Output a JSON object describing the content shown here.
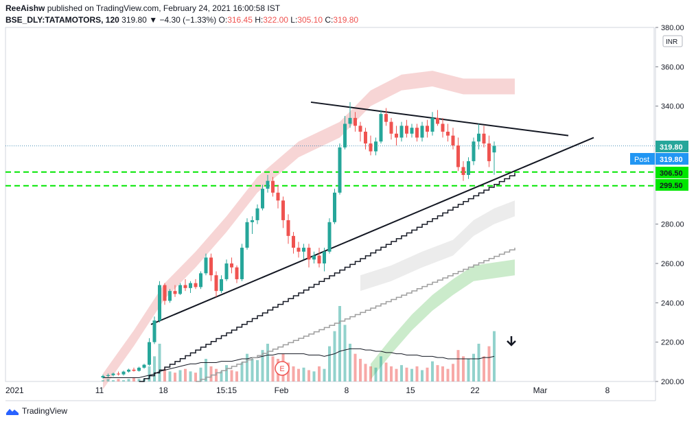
{
  "header": {
    "publisher": "ReeAishw",
    "published_text": "published on TradingView.com, February 24, 2021 16:00:58 IST",
    "symbol": "BSE_DLY:TATAMOTORS, 120",
    "last": "319.80",
    "change": "−4.30 (−1.33%)",
    "o_label": "O:",
    "o_value": "316.45",
    "h_label": "H:",
    "h_value": "322.00",
    "l_label": "L:",
    "l_value": "305.10",
    "c_label": "C:",
    "c_value": "319.80"
  },
  "footer": {
    "brand": "TradingView"
  },
  "colors": {
    "up": "#26a69a",
    "down": "#ef5350",
    "green_line": "#00e600",
    "post_badge": "#2196f3",
    "cloud_red": "#f4c7c7",
    "cloud_green": "#b9e4b9",
    "cloud_gray": "#e6e6e6"
  },
  "chart_data": {
    "type": "candlestick",
    "currency": "INR",
    "ylim": [
      200,
      380
    ],
    "y_ticks": [
      "380.00",
      "360.00",
      "340.00",
      "320.00",
      "300.00",
      "280.00",
      "260.00",
      "240.00",
      "220.00",
      "200.00"
    ],
    "x_labels": [
      "2021",
      "11",
      "18",
      "15:15",
      "Feb",
      "8",
      "15",
      "22",
      "Mar",
      "8"
    ],
    "price_labels": [
      {
        "text": "319.80",
        "value": 319.8
      },
      {
        "text": "319.80",
        "value": 319.8,
        "badge": "Post"
      },
      {
        "text": "306.50",
        "value": 306.5
      },
      {
        "text": "299.50",
        "value": 299.5
      }
    ],
    "horizontal_levels": [
      306.5,
      299.5
    ],
    "earnings_marker": "E",
    "candles": [
      [
        202,
        203.5,
        201.5,
        202.8
      ],
      [
        202.8,
        204,
        202,
        203.2
      ],
      [
        203.2,
        204.5,
        202.5,
        204
      ],
      [
        204,
        205,
        203,
        203.6
      ],
      [
        203.6,
        205.5,
        203,
        205
      ],
      [
        205,
        206.5,
        204.5,
        206
      ],
      [
        206,
        207,
        205,
        205.4
      ],
      [
        205.4,
        207.5,
        205,
        207
      ],
      [
        207,
        209,
        206.5,
        208.5
      ],
      [
        208.5,
        222,
        208,
        220
      ],
      [
        220,
        233,
        219,
        231
      ],
      [
        231,
        251,
        230,
        249
      ],
      [
        249,
        250,
        239,
        241
      ],
      [
        241,
        247,
        240,
        246
      ],
      [
        246,
        249,
        243,
        244.5
      ],
      [
        244.5,
        250,
        244,
        249
      ],
      [
        249,
        252,
        246,
        247.5
      ],
      [
        247.5,
        251,
        245,
        250
      ],
      [
        250,
        252,
        247,
        248
      ],
      [
        248,
        256,
        247,
        255
      ],
      [
        255,
        265,
        254,
        263
      ],
      [
        263,
        265,
        251,
        254
      ],
      [
        254,
        256,
        243,
        246
      ],
      [
        246,
        254,
        245,
        252
      ],
      [
        252,
        262,
        251,
        260
      ],
      [
        260,
        263,
        255,
        258
      ],
      [
        258,
        259,
        250,
        252
      ],
      [
        252,
        270,
        251,
        268
      ],
      [
        268,
        283,
        267,
        281
      ],
      [
        281,
        284,
        275,
        282
      ],
      [
        282,
        290,
        280,
        288
      ],
      [
        288,
        300,
        287,
        298
      ],
      [
        298,
        305,
        296,
        302
      ],
      [
        302,
        304,
        294,
        296
      ],
      [
        296,
        300,
        288,
        292
      ],
      [
        292,
        294,
        278,
        282
      ],
      [
        282,
        285,
        270,
        274
      ],
      [
        274,
        276,
        265,
        268
      ],
      [
        268,
        271,
        263,
        266
      ],
      [
        266,
        270,
        262,
        268
      ],
      [
        268,
        270,
        258,
        262
      ],
      [
        262,
        266,
        260,
        264
      ],
      [
        264,
        268,
        258,
        260
      ],
      [
        260,
        268,
        256,
        266
      ],
      [
        266,
        283,
        265,
        281
      ],
      [
        281,
        298,
        280,
        296
      ],
      [
        296,
        321,
        295,
        319
      ],
      [
        319,
        335,
        318,
        331
      ],
      [
        331,
        342,
        329,
        334
      ],
      [
        334,
        337,
        327,
        330
      ],
      [
        330,
        332,
        322,
        327
      ],
      [
        327,
        329,
        318,
        321
      ],
      [
        321,
        325,
        315,
        317
      ],
      [
        317,
        324,
        315,
        322
      ],
      [
        322,
        338,
        321,
        336
      ],
      [
        336,
        339,
        330,
        332
      ],
      [
        332,
        334,
        323,
        326
      ],
      [
        326,
        330,
        320,
        324
      ],
      [
        324,
        332,
        322,
        330
      ],
      [
        330,
        333,
        324,
        326
      ],
      [
        326,
        331,
        324,
        329
      ],
      [
        329,
        331,
        322,
        324
      ],
      [
        324,
        332,
        322,
        330
      ],
      [
        330,
        333,
        324,
        327
      ],
      [
        327,
        337,
        325,
        334
      ],
      [
        334,
        338,
        330,
        331
      ],
      [
        331,
        334,
        324,
        327
      ],
      [
        327,
        331,
        322,
        325
      ],
      [
        325,
        329,
        318,
        320
      ],
      [
        320,
        324,
        307,
        309
      ],
      [
        309,
        312,
        302,
        305
      ],
      [
        305,
        314,
        303,
        312
      ],
      [
        312,
        324,
        310,
        322
      ],
      [
        322,
        331,
        318,
        326
      ],
      [
        326,
        330,
        319,
        321
      ],
      [
        321,
        325,
        309,
        312
      ],
      [
        316.45,
        322,
        305.1,
        319.8
      ]
    ],
    "volume": [
      1,
      2,
      1,
      2,
      1,
      2,
      3,
      2,
      2,
      12,
      20,
      30,
      10,
      8,
      7,
      9,
      10,
      8,
      7,
      11,
      18,
      12,
      10,
      8,
      13,
      9,
      8,
      15,
      22,
      18,
      17,
      25,
      30,
      20,
      18,
      22,
      15,
      12,
      10,
      11,
      9,
      8,
      12,
      10,
      28,
      40,
      60,
      45,
      30,
      22,
      18,
      14,
      12,
      11,
      20,
      15,
      12,
      10,
      13,
      11,
      10,
      12,
      9,
      11,
      16,
      13,
      12,
      10,
      14,
      25,
      20,
      18,
      22,
      30,
      20,
      28,
      40
    ],
    "volume_ma": [
      3,
      3,
      3,
      3,
      3,
      3,
      3,
      3,
      4,
      5,
      6,
      8,
      9,
      10,
      11,
      12,
      13,
      14,
      14,
      15,
      15,
      15,
      15,
      16,
      16,
      16,
      17,
      18,
      18,
      19,
      19,
      20,
      21,
      21,
      22,
      22,
      22,
      22,
      22,
      22,
      21,
      21,
      21,
      20,
      21,
      22,
      24,
      25,
      26,
      26,
      26,
      25,
      25,
      24,
      24,
      23,
      23,
      22,
      22,
      21,
      21,
      21,
      20,
      20,
      20,
      19,
      19,
      18,
      18,
      18,
      18,
      18,
      18,
      18,
      19,
      19,
      20
    ]
  }
}
